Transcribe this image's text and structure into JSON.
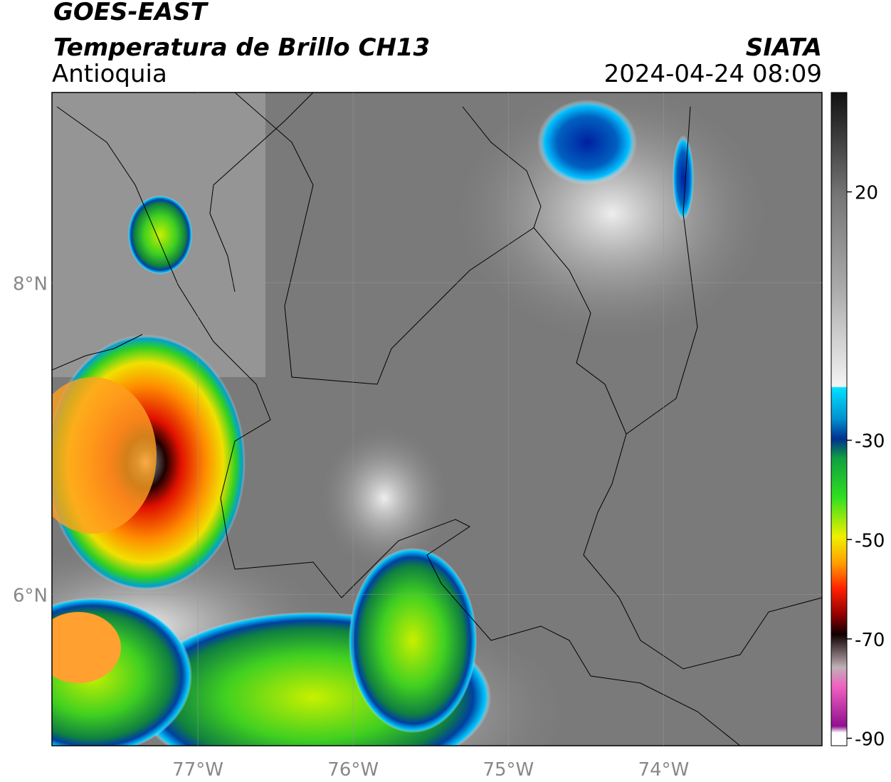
{
  "header": {
    "title": "GOES-EAST",
    "subtitle": "Temperatura de Brillo CH13",
    "region": "Antioquia",
    "source": "SIATA",
    "datetime": "2024-04-24 08:09"
  },
  "map": {
    "xlim": [
      -77.94,
      -72.98
    ],
    "ylim": [
      5.03,
      9.22
    ],
    "xticks": [
      {
        "value": -77,
        "label": "77°W"
      },
      {
        "value": -76,
        "label": "76°W"
      },
      {
        "value": -75,
        "label": "75°W"
      },
      {
        "value": -74,
        "label": "74°W"
      }
    ],
    "yticks": [
      {
        "value": 6,
        "label": "6°N"
      },
      {
        "value": 8,
        "label": "8°N"
      }
    ],
    "grid": true
  },
  "colorbar": {
    "clim": [
      -91.5,
      40
    ],
    "ticks": [
      20,
      -30,
      -50,
      -70,
      -90
    ]
  }
}
